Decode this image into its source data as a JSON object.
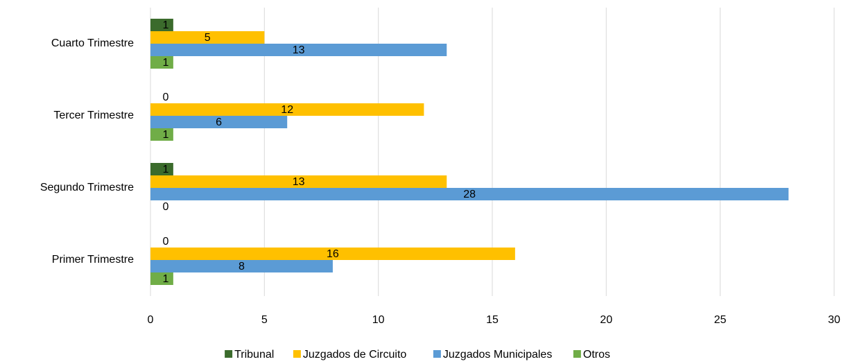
{
  "chart_data": {
    "type": "barh",
    "categories": [
      "Primer Trimestre",
      "Segundo Trimestre",
      "Tercer Trimestre",
      "Cuarto Trimestre"
    ],
    "series": [
      {
        "name": "Tribunal",
        "color": "#3b6b2c",
        "values": [
          0,
          1,
          0,
          1
        ]
      },
      {
        "name": "Juzgados de Circuito",
        "color": "#ffc000",
        "values": [
          16,
          13,
          12,
          5
        ]
      },
      {
        "name": "Juzgados Municipales",
        "color": "#5b9bd5",
        "values": [
          8,
          28,
          6,
          13
        ]
      },
      {
        "name": "Otros",
        "color": "#70ad47",
        "values": [
          1,
          0,
          1,
          1
        ]
      }
    ],
    "xlim": [
      0,
      30
    ],
    "xticks": [
      0,
      5,
      10,
      15,
      20,
      25,
      30
    ],
    "grid": true,
    "legend": "bottom"
  }
}
